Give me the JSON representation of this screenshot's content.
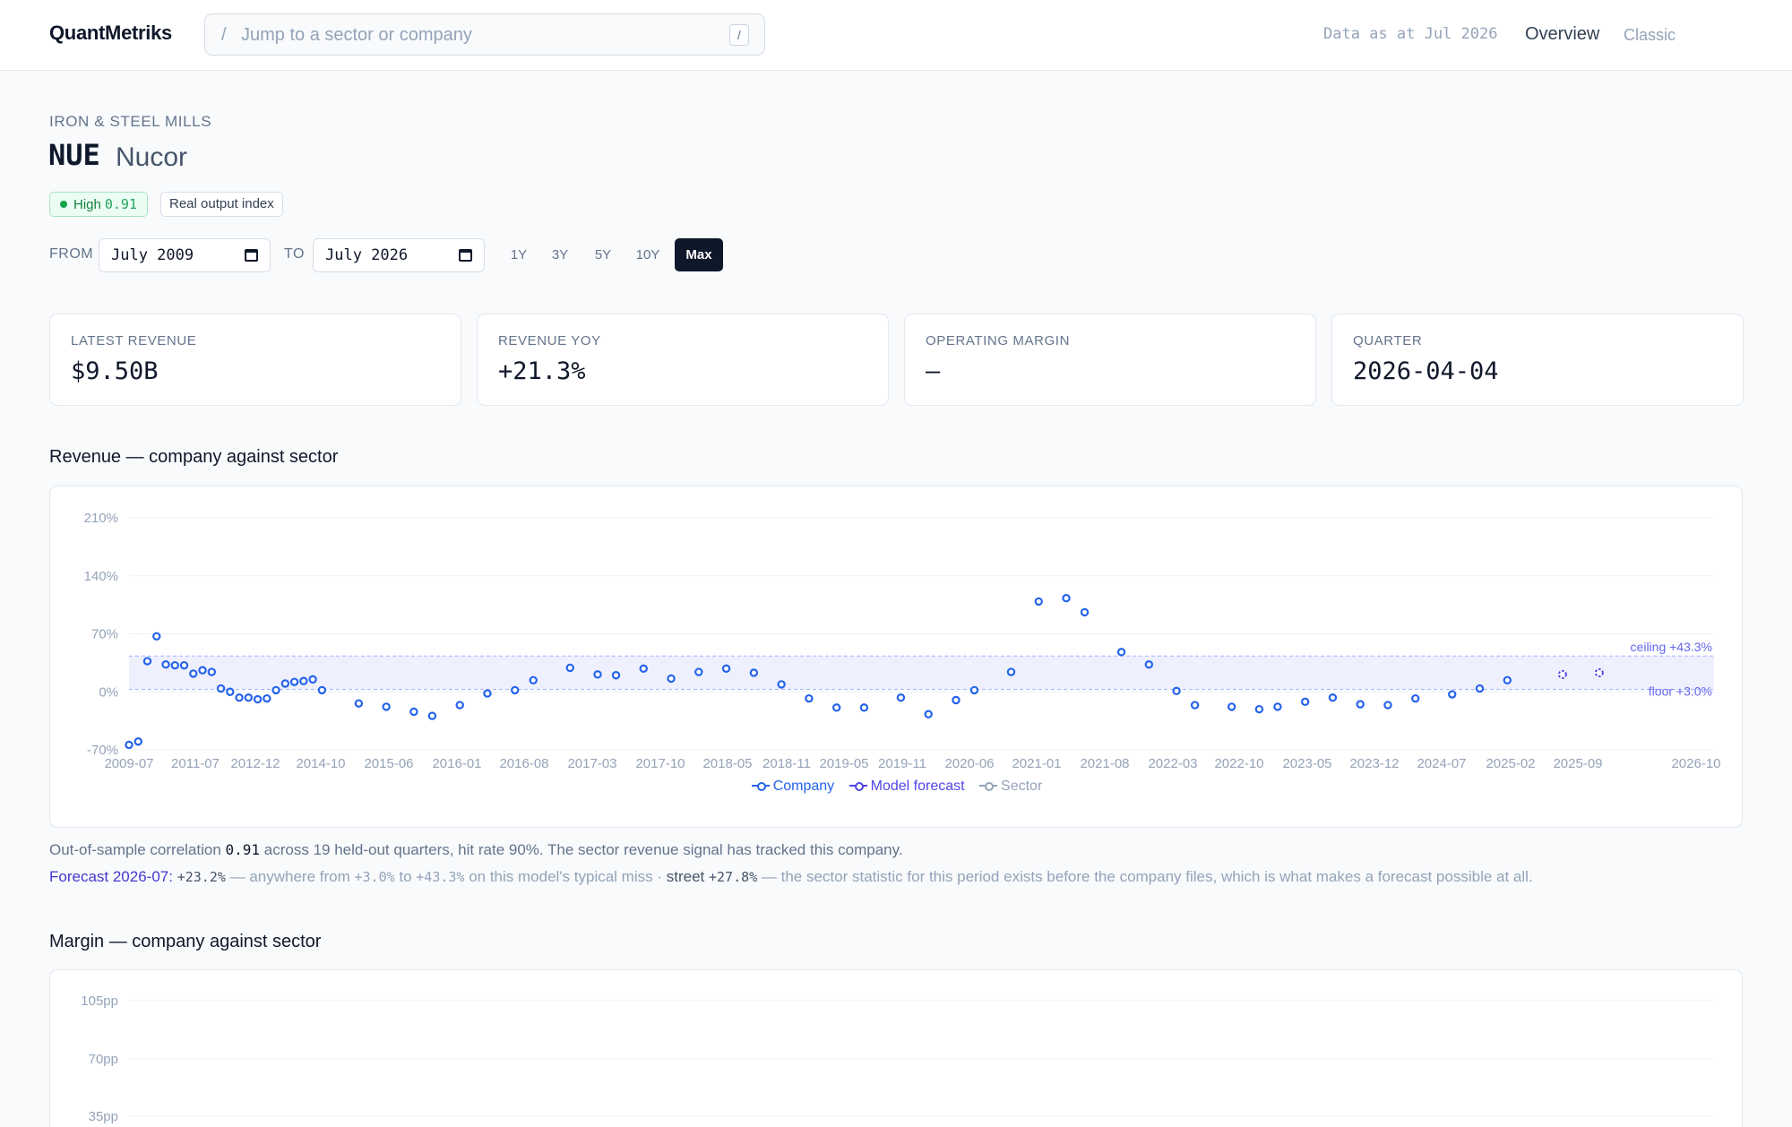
{
  "app": {
    "logo": "QuantMetriks",
    "search_placeholder": "Jump to a sector or company",
    "search_slash": "/",
    "search_kbd": "/",
    "as_at": "Data as at Jul 2026",
    "nav": {
      "overview": "Overview",
      "classic": "Classic"
    }
  },
  "company": {
    "sector": "IRON & STEEL MILLS",
    "ticker": "NUE",
    "name": "Nucor",
    "confidence_label": "High",
    "confidence_score": "0.91",
    "index_label": "Real output index"
  },
  "range": {
    "from_label": "FROM",
    "from_value": "July 2009",
    "to_label": "TO",
    "to_value": "July 2026",
    "buttons": [
      "1Y",
      "3Y",
      "5Y",
      "10Y",
      "Max"
    ],
    "active": "Max"
  },
  "stats": [
    {
      "label": "LATEST REVENUE",
      "value": "$9.50B"
    },
    {
      "label": "REVENUE YOY",
      "value": "+21.3%"
    },
    {
      "label": "OPERATING MARGIN",
      "value": "—"
    },
    {
      "label": "QUARTER",
      "value": "2026-04-04"
    }
  ],
  "revenue_section": {
    "title": "Revenue — company against sector",
    "legend": {
      "company": "Company",
      "model": "Model forecast",
      "sector": "Sector"
    },
    "band_ceiling_label": "ceiling +43.3%",
    "band_floor_label": "floor +3.0%",
    "note_text": "Out-of-sample correlation ",
    "note_corr": "0.91",
    "note_rest": " across 19 held-out quarters, hit rate 90%. The sector revenue signal has tracked this company.",
    "forecast_label": "Forecast 2026-07:",
    "forecast_value": "+23.2%",
    "forecast_mid1": " — anywhere from ",
    "forecast_low": "+3.0%",
    "forecast_mid2": " to ",
    "forecast_high": "+43.3%",
    "forecast_mid3": " on this model's typical miss · ",
    "street_label": "street ",
    "street_value": "+27.8%",
    "forecast_tail": " — the sector statistic for this period exists before the company files, which is what makes a forecast possible at all."
  },
  "margin_section": {
    "title": "Margin — company against sector",
    "y_ticks": [
      "105pp",
      "70pp",
      "35pp"
    ]
  },
  "chart_data": {
    "type": "scatter",
    "title": "Revenue — company against sector",
    "y_ticks": [
      "210%",
      "140%",
      "70%",
      "0%",
      "-70%"
    ],
    "ylim": [
      -70,
      210
    ],
    "x_ticks": [
      "2009-07",
      "2011-07",
      "2012-12",
      "2014-10",
      "2015-06",
      "2016-01",
      "2016-08",
      "2017-03",
      "2017-10",
      "2018-05",
      "2018-11",
      "2019-05",
      "2019-11",
      "2020-06",
      "2021-01",
      "2021-08",
      "2022-03",
      "2022-10",
      "2023-05",
      "2023-12",
      "2024-07",
      "2025-02",
      "2025-09",
      "2026-10"
    ],
    "xlim": [
      2009.5,
      2026.75
    ],
    "band": {
      "floor": 3.0,
      "ceiling": 43.3
    },
    "series": [
      {
        "name": "Company",
        "points": [
          [
            2009.5,
            -64
          ],
          [
            2009.6,
            -60
          ],
          [
            2009.7,
            37
          ],
          [
            2009.8,
            67
          ],
          [
            2009.9,
            33
          ],
          [
            2010.0,
            32
          ],
          [
            2010.1,
            32
          ],
          [
            2010.2,
            22
          ],
          [
            2010.3,
            26
          ],
          [
            2010.4,
            24
          ],
          [
            2010.5,
            4
          ],
          [
            2010.6,
            0
          ],
          [
            2010.7,
            -7
          ],
          [
            2010.8,
            -7
          ],
          [
            2010.9,
            -9
          ],
          [
            2011.0,
            -8
          ],
          [
            2011.1,
            2
          ],
          [
            2011.2,
            10
          ],
          [
            2011.3,
            12
          ],
          [
            2011.4,
            13
          ],
          [
            2011.5,
            15
          ],
          [
            2011.6,
            2
          ],
          [
            2012.0,
            -14
          ],
          [
            2012.3,
            -18
          ],
          [
            2012.6,
            -24
          ],
          [
            2012.8,
            -29
          ],
          [
            2013.1,
            -16
          ],
          [
            2013.4,
            -2
          ],
          [
            2013.7,
            2
          ],
          [
            2013.9,
            14
          ],
          [
            2014.3,
            29
          ],
          [
            2014.6,
            21
          ],
          [
            2014.8,
            20
          ],
          [
            2015.1,
            28
          ],
          [
            2015.4,
            16
          ],
          [
            2015.7,
            24
          ],
          [
            2016.0,
            28
          ],
          [
            2016.3,
            23
          ],
          [
            2016.6,
            9
          ],
          [
            2016.9,
            -8
          ],
          [
            2017.2,
            -19
          ],
          [
            2017.5,
            -19
          ],
          [
            2017.9,
            -7
          ],
          [
            2018.2,
            -27
          ],
          [
            2018.5,
            -10
          ],
          [
            2018.7,
            2
          ],
          [
            2019.1,
            24
          ],
          [
            2019.4,
            109
          ],
          [
            2019.7,
            113
          ],
          [
            2019.9,
            96
          ],
          [
            2020.3,
            48
          ],
          [
            2020.6,
            33
          ],
          [
            2020.9,
            1
          ],
          [
            2021.1,
            -16
          ],
          [
            2021.5,
            -18
          ],
          [
            2021.8,
            -21
          ],
          [
            2022.0,
            -18
          ],
          [
            2022.3,
            -12
          ],
          [
            2022.6,
            -7
          ],
          [
            2022.9,
            -15
          ],
          [
            2023.2,
            -16
          ],
          [
            2023.5,
            -8
          ],
          [
            2023.9,
            -3
          ],
          [
            2024.2,
            4
          ],
          [
            2024.5,
            14
          ]
        ]
      },
      {
        "name": "Model forecast",
        "points": [
          [
            2025.1,
            21
          ],
          [
            2025.5,
            23
          ]
        ]
      }
    ]
  }
}
